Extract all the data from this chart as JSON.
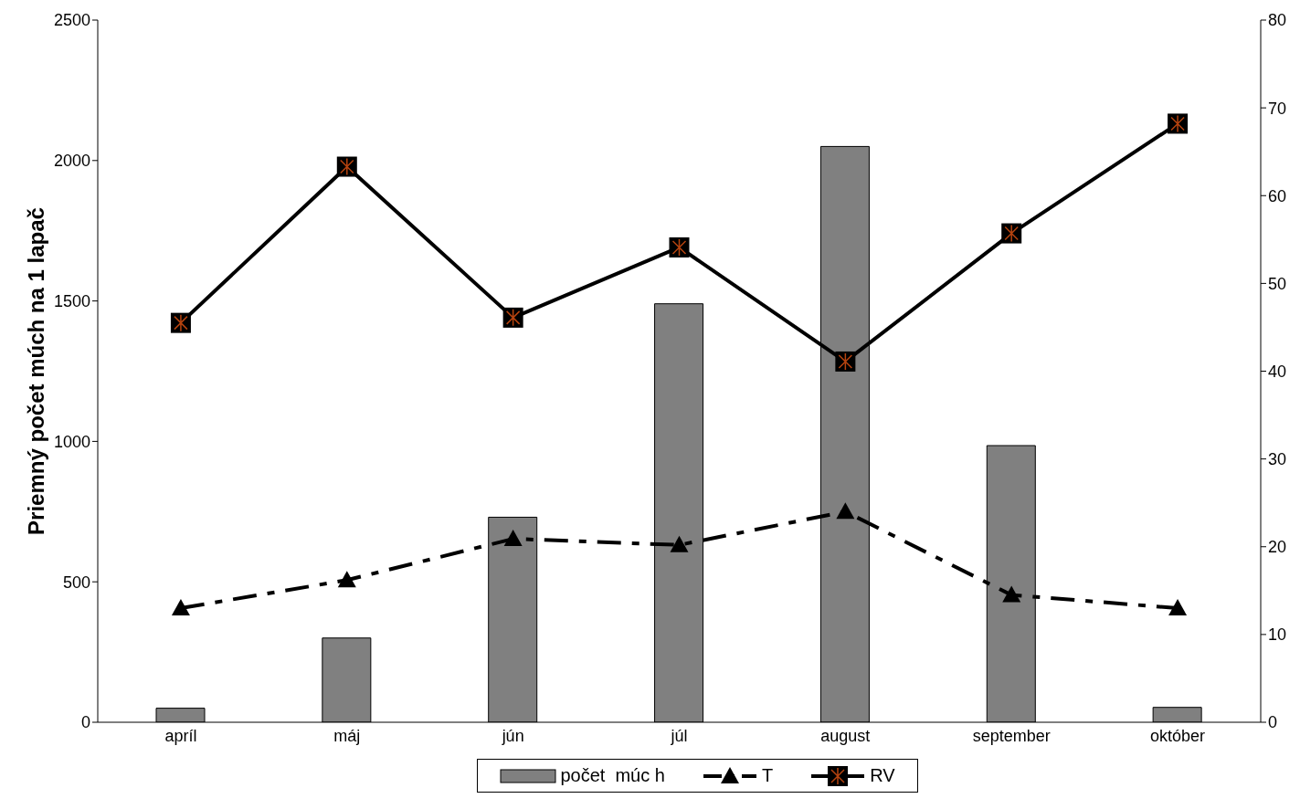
{
  "chart_data": {
    "type": "bar",
    "ylabel": "Priemný počet múch na 1 lapač",
    "categories": [
      "apríl",
      "máj",
      "jún",
      "júl",
      "august",
      "september",
      "október"
    ],
    "series": [
      {
        "name": "počet  múc h",
        "color": "#808080",
        "values": [
          50,
          300,
          730,
          1490,
          2050,
          985,
          53
        ]
      },
      {
        "name": "T",
        "type": "line",
        "axis": "y2",
        "color": "#000000",
        "marker": "triangle",
        "line_style": "dashed",
        "values": [
          13.0,
          16.2,
          20.9,
          20.2,
          24.0,
          14.5,
          13.0
        ]
      },
      {
        "name": "RV",
        "type": "line",
        "axis": "y2",
        "color": "#000000",
        "marker": "square",
        "line_style": "solid",
        "values": [
          45.5,
          63.3,
          46.1,
          54.1,
          41.1,
          55.7,
          68.2
        ]
      }
    ],
    "ylim": [
      0,
      2500
    ],
    "yticks": [
      0,
      500,
      1000,
      1500,
      2000,
      2500
    ],
    "y2lim": [
      0,
      80
    ],
    "y2ticks": [
      0,
      10,
      20,
      30,
      40,
      50,
      60,
      70,
      80
    ],
    "grid": false,
    "legend": "bottom"
  }
}
